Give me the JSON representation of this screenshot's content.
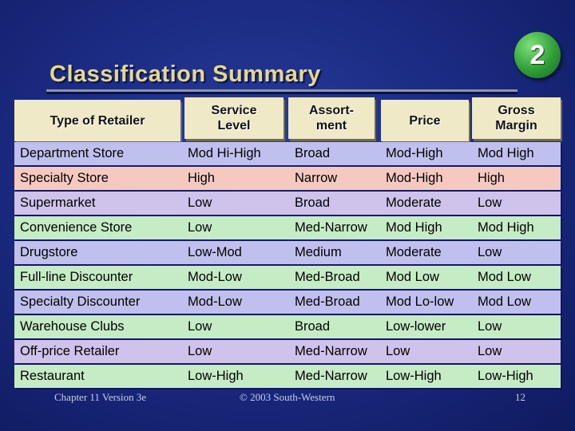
{
  "slide": {
    "title": "Classification Summary",
    "badge": "2",
    "footer_left": "Chapter 11 Version 3e",
    "footer_center": "© 2003 South-Western",
    "footer_right": "12"
  },
  "colors": {
    "header": "#efe9c8",
    "row_palette": [
      "#bfc0ee",
      "#f5c9c0",
      "#cfc3ec",
      "#c5ecc4",
      "#bfc0ee",
      "#c5ecc4",
      "#bfc0ee",
      "#c5ecc4",
      "#cfc3ec",
      "#c5ecc4"
    ]
  },
  "table": {
    "headers": [
      "Type of Retailer",
      "Service\nLevel",
      "Assort-\nment",
      "Price",
      "Gross\nMargin"
    ],
    "rows": [
      [
        "Department Store",
        "Mod Hi-High",
        "Broad",
        "Mod-High",
        "Mod High"
      ],
      [
        "Specialty Store",
        "High",
        "Narrow",
        "Mod-High",
        "High"
      ],
      [
        "Supermarket",
        "Low",
        "Broad",
        "Moderate",
        "Low"
      ],
      [
        "Convenience Store",
        "Low",
        "Med-Narrow",
        "Mod High",
        "Mod High"
      ],
      [
        "Drugstore",
        "Low-Mod",
        "Medium",
        "Moderate",
        "Low"
      ],
      [
        "Full-line Discounter",
        "Mod-Low",
        "Med-Broad",
        "Mod Low",
        "Mod Low"
      ],
      [
        "Specialty Discounter",
        "Mod-Low",
        "Med-Broad",
        "Mod Lo-low",
        "Mod Low"
      ],
      [
        "Warehouse Clubs",
        "Low",
        "Broad",
        "Low-lower",
        "Low"
      ],
      [
        "Off-price Retailer",
        "Low",
        "Med-Narrow",
        "Low",
        "Low"
      ],
      [
        "Restaurant",
        "Low-High",
        "Med-Narrow",
        "Low-High",
        "Low-High"
      ]
    ]
  }
}
